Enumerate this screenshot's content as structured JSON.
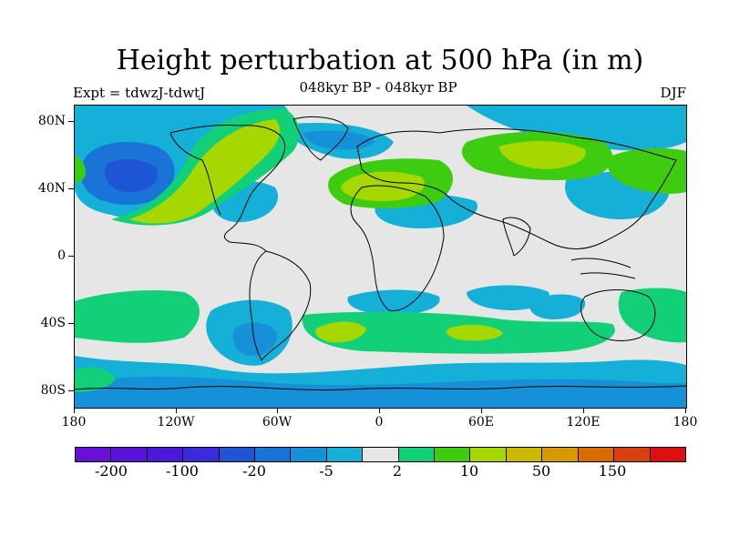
{
  "title": "Height perturbation at 500 hPa (in m)",
  "subtitle": "048kyr BP - 048kyr BP",
  "experiment": "Expt = tdwzJ-tdwtJ",
  "season": "DJF",
  "y_axis": [
    "80N",
    "40N",
    "0",
    "40S",
    "80S"
  ],
  "x_axis": [
    "180",
    "120W",
    "60W",
    "0",
    "60E",
    "120E",
    "180"
  ],
  "legend": {
    "labels": [
      "-200",
      "-100",
      "-20",
      "-5",
      "2",
      "10",
      "50",
      "150"
    ],
    "colors": [
      "#6a0fd8",
      "#5a12d8",
      "#4a1ad8",
      "#3a2adc",
      "#1e55d4",
      "#1a74d8",
      "#1690d8",
      "#14b0d8",
      "#e6e6e6",
      "#12d078",
      "#3ecc10",
      "#a6d800",
      "#ccb800",
      "#d89800",
      "#d86c00",
      "#d84010",
      "#dc1010"
    ]
  },
  "colors": {
    "background": "#e6e6e6",
    "coast": "#000000"
  }
}
